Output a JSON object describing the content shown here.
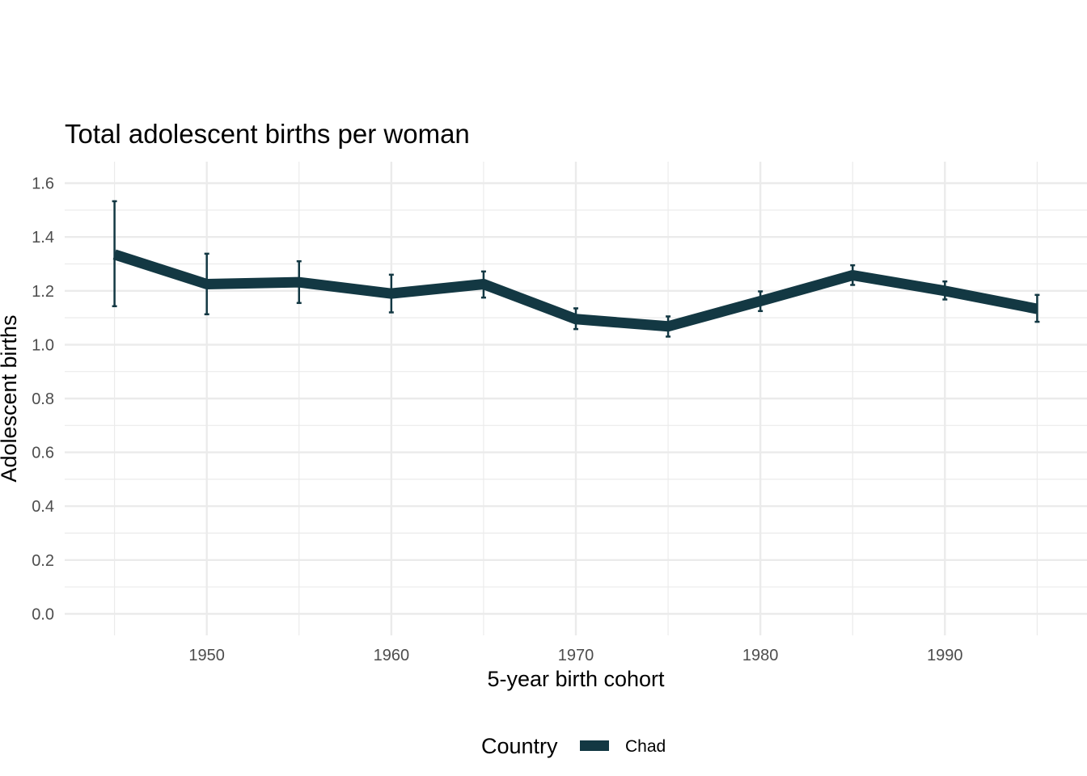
{
  "chart_data": {
    "type": "line",
    "title": "Total adolescent births per woman",
    "xlabel": "5-year birth cohort",
    "ylabel": "Adolescent births",
    "xlim": [
      1942.3,
      1997.7
    ],
    "ylim": [
      -0.08,
      1.68
    ],
    "x_ticks": [
      1950,
      1960,
      1970,
      1980,
      1990
    ],
    "x_minor_ticks": [
      1945,
      1955,
      1965,
      1975,
      1985,
      1995
    ],
    "y_ticks": [
      0.0,
      0.2,
      0.4,
      0.6,
      0.8,
      1.0,
      1.2,
      1.4,
      1.6
    ],
    "y_tick_labels": [
      "0.0",
      "0.2",
      "0.4",
      "0.6",
      "0.8",
      "1.0",
      "1.2",
      "1.4",
      "1.6"
    ],
    "y_minor_ticks": [
      0.1,
      0.3,
      0.5,
      0.7,
      0.9,
      1.1,
      1.3,
      1.5
    ],
    "grid": true,
    "legend": {
      "title": "Country",
      "position": "bottom"
    },
    "series": [
      {
        "name": "Chad",
        "color": "#133843",
        "x": [
          1945,
          1950,
          1955,
          1960,
          1965,
          1970,
          1975,
          1980,
          1985,
          1990,
          1995
        ],
        "y": [
          1.335,
          1.225,
          1.232,
          1.19,
          1.225,
          1.095,
          1.068,
          1.162,
          1.258,
          1.2,
          1.133
        ],
        "lower": [
          1.143,
          1.113,
          1.155,
          1.12,
          1.175,
          1.058,
          1.03,
          1.125,
          1.222,
          1.168,
          1.085
        ],
        "upper": [
          1.533,
          1.338,
          1.31,
          1.26,
          1.272,
          1.135,
          1.105,
          1.198,
          1.295,
          1.235,
          1.185
        ]
      }
    ]
  }
}
